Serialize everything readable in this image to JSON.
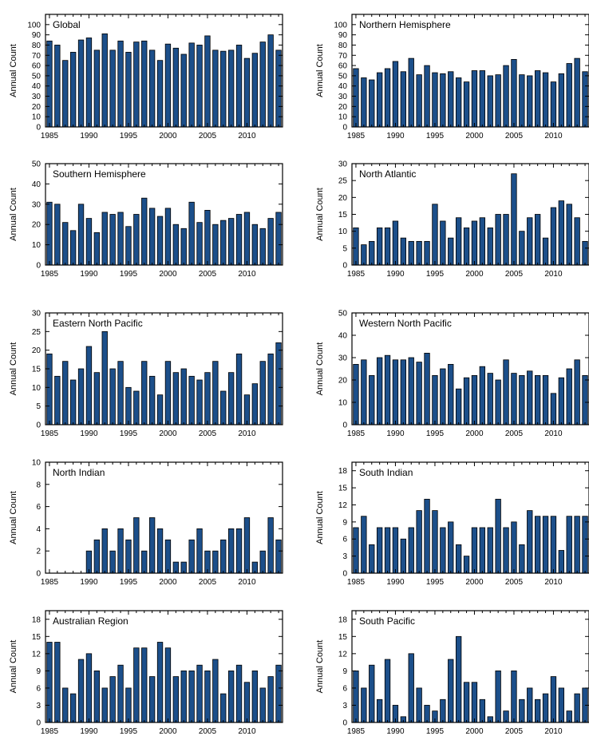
{
  "chart_data": [
    {
      "type": "bar",
      "title": "Global",
      "ylabel": "Annual Count",
      "x": [
        1985,
        1986,
        1987,
        1988,
        1989,
        1990,
        1991,
        1992,
        1993,
        1994,
        1995,
        1996,
        1997,
        1998,
        1999,
        2000,
        2001,
        2002,
        2003,
        2004,
        2005,
        2006,
        2007,
        2008,
        2009,
        2010,
        2011,
        2012,
        2013,
        2014
      ],
      "values": [
        84,
        80,
        65,
        73,
        85,
        87,
        75,
        91,
        75,
        84,
        73,
        83,
        84,
        75,
        65,
        81,
        77,
        71,
        82,
        80,
        89,
        75,
        74,
        75,
        80,
        67,
        72,
        83,
        90,
        75
      ],
      "ylim": [
        0,
        110
      ],
      "yticks": [
        0,
        10,
        20,
        30,
        40,
        50,
        60,
        70,
        80,
        90,
        100
      ],
      "xticks": [
        1985,
        1990,
        1995,
        2000,
        2005,
        2010
      ],
      "bar_color": "#1c4f8a"
    },
    {
      "type": "bar",
      "title": "Northern Hemisphere",
      "ylabel": "Annual Count",
      "x": [
        1985,
        1986,
        1987,
        1988,
        1989,
        1990,
        1991,
        1992,
        1993,
        1994,
        1995,
        1996,
        1997,
        1998,
        1999,
        2000,
        2001,
        2002,
        2003,
        2004,
        2005,
        2006,
        2007,
        2008,
        2009,
        2010,
        2011,
        2012,
        2013,
        2014
      ],
      "values": [
        57,
        48,
        46,
        53,
        57,
        64,
        54,
        67,
        51,
        60,
        53,
        52,
        54,
        48,
        44,
        55,
        55,
        50,
        51,
        60,
        66,
        51,
        50,
        55,
        53,
        44,
        52,
        62,
        67,
        54
      ],
      "ylim": [
        0,
        110
      ],
      "yticks": [
        0,
        10,
        20,
        30,
        40,
        50,
        60,
        70,
        80,
        90,
        100
      ],
      "xticks": [
        1985,
        1990,
        1995,
        2000,
        2005,
        2010
      ],
      "bar_color": "#1c4f8a"
    },
    {
      "type": "bar",
      "title": "Southern Hemisphere",
      "ylabel": "Annual Count",
      "x": [
        1985,
        1986,
        1987,
        1988,
        1989,
        1990,
        1991,
        1992,
        1993,
        1994,
        1995,
        1996,
        1997,
        1998,
        1999,
        2000,
        2001,
        2002,
        2003,
        2004,
        2005,
        2006,
        2007,
        2008,
        2009,
        2010,
        2011,
        2012,
        2013,
        2014
      ],
      "values": [
        31,
        30,
        21,
        17,
        30,
        23,
        16,
        26,
        25,
        26,
        19,
        25,
        33,
        28,
        24,
        28,
        20,
        18,
        31,
        21,
        27,
        20,
        22,
        23,
        25,
        26,
        20,
        18,
        23,
        26
      ],
      "ylim": [
        0,
        50
      ],
      "yticks": [
        0,
        10,
        20,
        30,
        40,
        50
      ],
      "xticks": [
        1985,
        1990,
        1995,
        2000,
        2005,
        2010
      ],
      "bar_color": "#1c4f8a"
    },
    {
      "type": "bar",
      "title": "North Atlantic",
      "ylabel": "Annual Count",
      "x": [
        1985,
        1986,
        1987,
        1988,
        1989,
        1990,
        1991,
        1992,
        1993,
        1994,
        1995,
        1996,
        1997,
        1998,
        1999,
        2000,
        2001,
        2002,
        2003,
        2004,
        2005,
        2006,
        2007,
        2008,
        2009,
        2010,
        2011,
        2012,
        2013,
        2014
      ],
      "values": [
        11,
        6,
        7,
        11,
        11,
        13,
        8,
        7,
        7,
        7,
        18,
        13,
        8,
        14,
        11,
        13,
        14,
        11,
        15,
        15,
        27,
        10,
        14,
        15,
        8,
        17,
        19,
        18,
        14,
        7
      ],
      "ylim": [
        0,
        30
      ],
      "yticks": [
        0,
        5,
        10,
        15,
        20,
        25,
        30
      ],
      "xticks": [
        1985,
        1990,
        1995,
        2000,
        2005,
        2010
      ],
      "bar_color": "#1c4f8a"
    },
    {
      "type": "bar",
      "title": "Eastern North Pacific",
      "ylabel": "Annual Count",
      "x": [
        1985,
        1986,
        1987,
        1988,
        1989,
        1990,
        1991,
        1992,
        1993,
        1994,
        1995,
        1996,
        1997,
        1998,
        1999,
        2000,
        2001,
        2002,
        2003,
        2004,
        2005,
        2006,
        2007,
        2008,
        2009,
        2010,
        2011,
        2012,
        2013,
        2014
      ],
      "values": [
        19,
        13,
        17,
        12,
        15,
        21,
        14,
        25,
        15,
        17,
        10,
        9,
        17,
        13,
        8,
        17,
        14,
        15,
        13,
        12,
        14,
        17,
        9,
        14,
        19,
        8,
        11,
        17,
        19,
        22
      ],
      "ylim": [
        0,
        30
      ],
      "yticks": [
        0,
        5,
        10,
        15,
        20,
        25,
        30
      ],
      "xticks": [
        1985,
        1990,
        1995,
        2000,
        2005,
        2010
      ],
      "bar_color": "#1c4f8a"
    },
    {
      "type": "bar",
      "title": "Western North Pacific",
      "ylabel": "Annual Count",
      "x": [
        1985,
        1986,
        1987,
        1988,
        1989,
        1990,
        1991,
        1992,
        1993,
        1994,
        1995,
        1996,
        1997,
        1998,
        1999,
        2000,
        2001,
        2002,
        2003,
        2004,
        2005,
        2006,
        2007,
        2008,
        2009,
        2010,
        2011,
        2012,
        2013,
        2014
      ],
      "values": [
        27,
        29,
        22,
        30,
        31,
        29,
        29,
        30,
        28,
        32,
        22,
        25,
        27,
        16,
        21,
        22,
        26,
        23,
        20,
        29,
        23,
        22,
        24,
        22,
        22,
        14,
        21,
        25,
        29,
        22
      ],
      "ylim": [
        0,
        50
      ],
      "yticks": [
        0,
        10,
        20,
        30,
        40,
        50
      ],
      "xticks": [
        1985,
        1990,
        1995,
        2000,
        2005,
        2010
      ],
      "bar_color": "#1c4f8a"
    },
    {
      "type": "bar",
      "title": "North Indian",
      "ylabel": "Annual Count",
      "x": [
        1985,
        1986,
        1987,
        1988,
        1989,
        1990,
        1991,
        1992,
        1993,
        1994,
        1995,
        1996,
        1997,
        1998,
        1999,
        2000,
        2001,
        2002,
        2003,
        2004,
        2005,
        2006,
        2007,
        2008,
        2009,
        2010,
        2011,
        2012,
        2013,
        2014
      ],
      "values": [
        0,
        0,
        0,
        0,
        0,
        2,
        3,
        4,
        2,
        4,
        3,
        5,
        2,
        5,
        4,
        3,
        1,
        1,
        3,
        4,
        2,
        2,
        3,
        4,
        4,
        5,
        1,
        2,
        5,
        3
      ],
      "ylim": [
        0,
        10
      ],
      "yticks": [
        0,
        2,
        4,
        6,
        8,
        10
      ],
      "xticks": [
        1985,
        1990,
        1995,
        2000,
        2005,
        2010
      ],
      "bar_color": "#1c4f8a"
    },
    {
      "type": "bar",
      "title": "South Indian",
      "ylabel": "Annual Count",
      "x": [
        1985,
        1986,
        1987,
        1988,
        1989,
        1990,
        1991,
        1992,
        1993,
        1994,
        1995,
        1996,
        1997,
        1998,
        1999,
        2000,
        2001,
        2002,
        2003,
        2004,
        2005,
        2006,
        2007,
        2008,
        2009,
        2010,
        2011,
        2012,
        2013,
        2014
      ],
      "values": [
        8,
        10,
        5,
        8,
        8,
        8,
        6,
        8,
        11,
        13,
        11,
        8,
        9,
        5,
        3,
        8,
        8,
        8,
        13,
        8,
        9,
        5,
        11,
        10,
        10,
        10,
        4,
        10,
        10,
        10
      ],
      "ylim": [
        0,
        19.5
      ],
      "yticks": [
        0,
        3,
        6,
        9,
        12,
        15,
        18
      ],
      "xticks": [
        1985,
        1990,
        1995,
        2000,
        2005,
        2010
      ],
      "bar_color": "#1c4f8a"
    },
    {
      "type": "bar",
      "title": "Australian Region",
      "ylabel": "Annual Count",
      "x": [
        1985,
        1986,
        1987,
        1988,
        1989,
        1990,
        1991,
        1992,
        1993,
        1994,
        1995,
        1996,
        1997,
        1998,
        1999,
        2000,
        2001,
        2002,
        2003,
        2004,
        2005,
        2006,
        2007,
        2008,
        2009,
        2010,
        2011,
        2012,
        2013,
        2014
      ],
      "values": [
        14,
        14,
        6,
        5,
        11,
        12,
        9,
        6,
        8,
        10,
        6,
        13,
        13,
        8,
        14,
        13,
        8,
        9,
        9,
        10,
        9,
        11,
        5,
        9,
        10,
        7,
        9,
        6,
        8,
        10
      ],
      "ylim": [
        0,
        19.5
      ],
      "yticks": [
        0,
        3,
        6,
        9,
        12,
        15,
        18
      ],
      "xticks": [
        1985,
        1990,
        1995,
        2000,
        2005,
        2010
      ],
      "bar_color": "#1c4f8a"
    },
    {
      "type": "bar",
      "title": "South Pacific",
      "ylabel": "Annual Count",
      "x": [
        1985,
        1986,
        1987,
        1988,
        1989,
        1990,
        1991,
        1992,
        1993,
        1994,
        1995,
        1996,
        1997,
        1998,
        1999,
        2000,
        2001,
        2002,
        2003,
        2004,
        2005,
        2006,
        2007,
        2008,
        2009,
        2010,
        2011,
        2012,
        2013,
        2014
      ],
      "values": [
        9,
        6,
        10,
        4,
        11,
        3,
        1,
        12,
        6,
        3,
        2,
        4,
        11,
        15,
        7,
        7,
        4,
        1,
        9,
        2,
        9,
        4,
        6,
        4,
        5,
        8,
        6,
        2,
        5,
        6
      ],
      "ylim": [
        0,
        19.5
      ],
      "yticks": [
        0,
        3,
        6,
        9,
        12,
        15,
        18
      ],
      "xticks": [
        1985,
        1990,
        1995,
        2000,
        2005,
        2010
      ],
      "bar_color": "#1c4f8a"
    }
  ]
}
